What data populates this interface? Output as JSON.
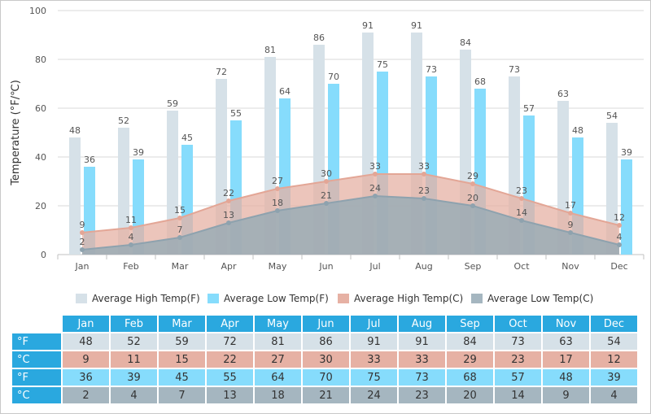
{
  "chart_data": {
    "type": "bar",
    "title": "",
    "xlabel": "",
    "ylabel": "Temperature (°F/℃)",
    "ylim": [
      0,
      100
    ],
    "yticks": [
      0,
      20,
      40,
      60,
      80,
      100
    ],
    "grid": true,
    "legend_position": "bottom",
    "categories": [
      "Jan",
      "Feb",
      "Mar",
      "Apr",
      "May",
      "Jun",
      "Jul",
      "Aug",
      "Sep",
      "Oct",
      "Nov",
      "Dec"
    ],
    "series": [
      {
        "name": "Average High Temp(F)",
        "kind": "bar",
        "color": "#d6e1e8",
        "values": [
          48,
          52,
          59,
          72,
          81,
          86,
          91,
          91,
          84,
          73,
          63,
          54
        ]
      },
      {
        "name": "Average Low Temp(F)",
        "kind": "bar",
        "color": "#86dcfc",
        "values": [
          36,
          39,
          45,
          55,
          64,
          70,
          75,
          73,
          68,
          57,
          48,
          39
        ]
      },
      {
        "name": "Average High Temp(C)",
        "kind": "area",
        "color": "#e6b1a4",
        "values": [
          9,
          11,
          15,
          22,
          27,
          30,
          33,
          33,
          29,
          23,
          17,
          12
        ]
      },
      {
        "name": "Average Low Temp(C)",
        "kind": "area",
        "color": "#a5b6c0",
        "values": [
          2,
          4,
          7,
          13,
          18,
          21,
          24,
          23,
          20,
          14,
          9,
          4
        ]
      }
    ]
  },
  "table": {
    "header": [
      "Jan",
      "Feb",
      "Mar",
      "Apr",
      "May",
      "Jun",
      "Jul",
      "Aug",
      "Sep",
      "Oct",
      "Nov",
      "Dec"
    ],
    "rows": [
      {
        "label": "°F",
        "values": [
          48,
          52,
          59,
          72,
          81,
          86,
          91,
          91,
          84,
          73,
          63,
          54
        ]
      },
      {
        "label": "°C",
        "values": [
          9,
          11,
          15,
          22,
          27,
          30,
          33,
          33,
          29,
          23,
          17,
          12
        ]
      },
      {
        "label": "°F",
        "values": [
          36,
          39,
          45,
          55,
          64,
          70,
          75,
          73,
          68,
          57,
          48,
          39
        ]
      },
      {
        "label": "°C",
        "values": [
          2,
          4,
          7,
          13,
          18,
          21,
          24,
          23,
          20,
          14,
          9,
          4
        ]
      }
    ]
  }
}
